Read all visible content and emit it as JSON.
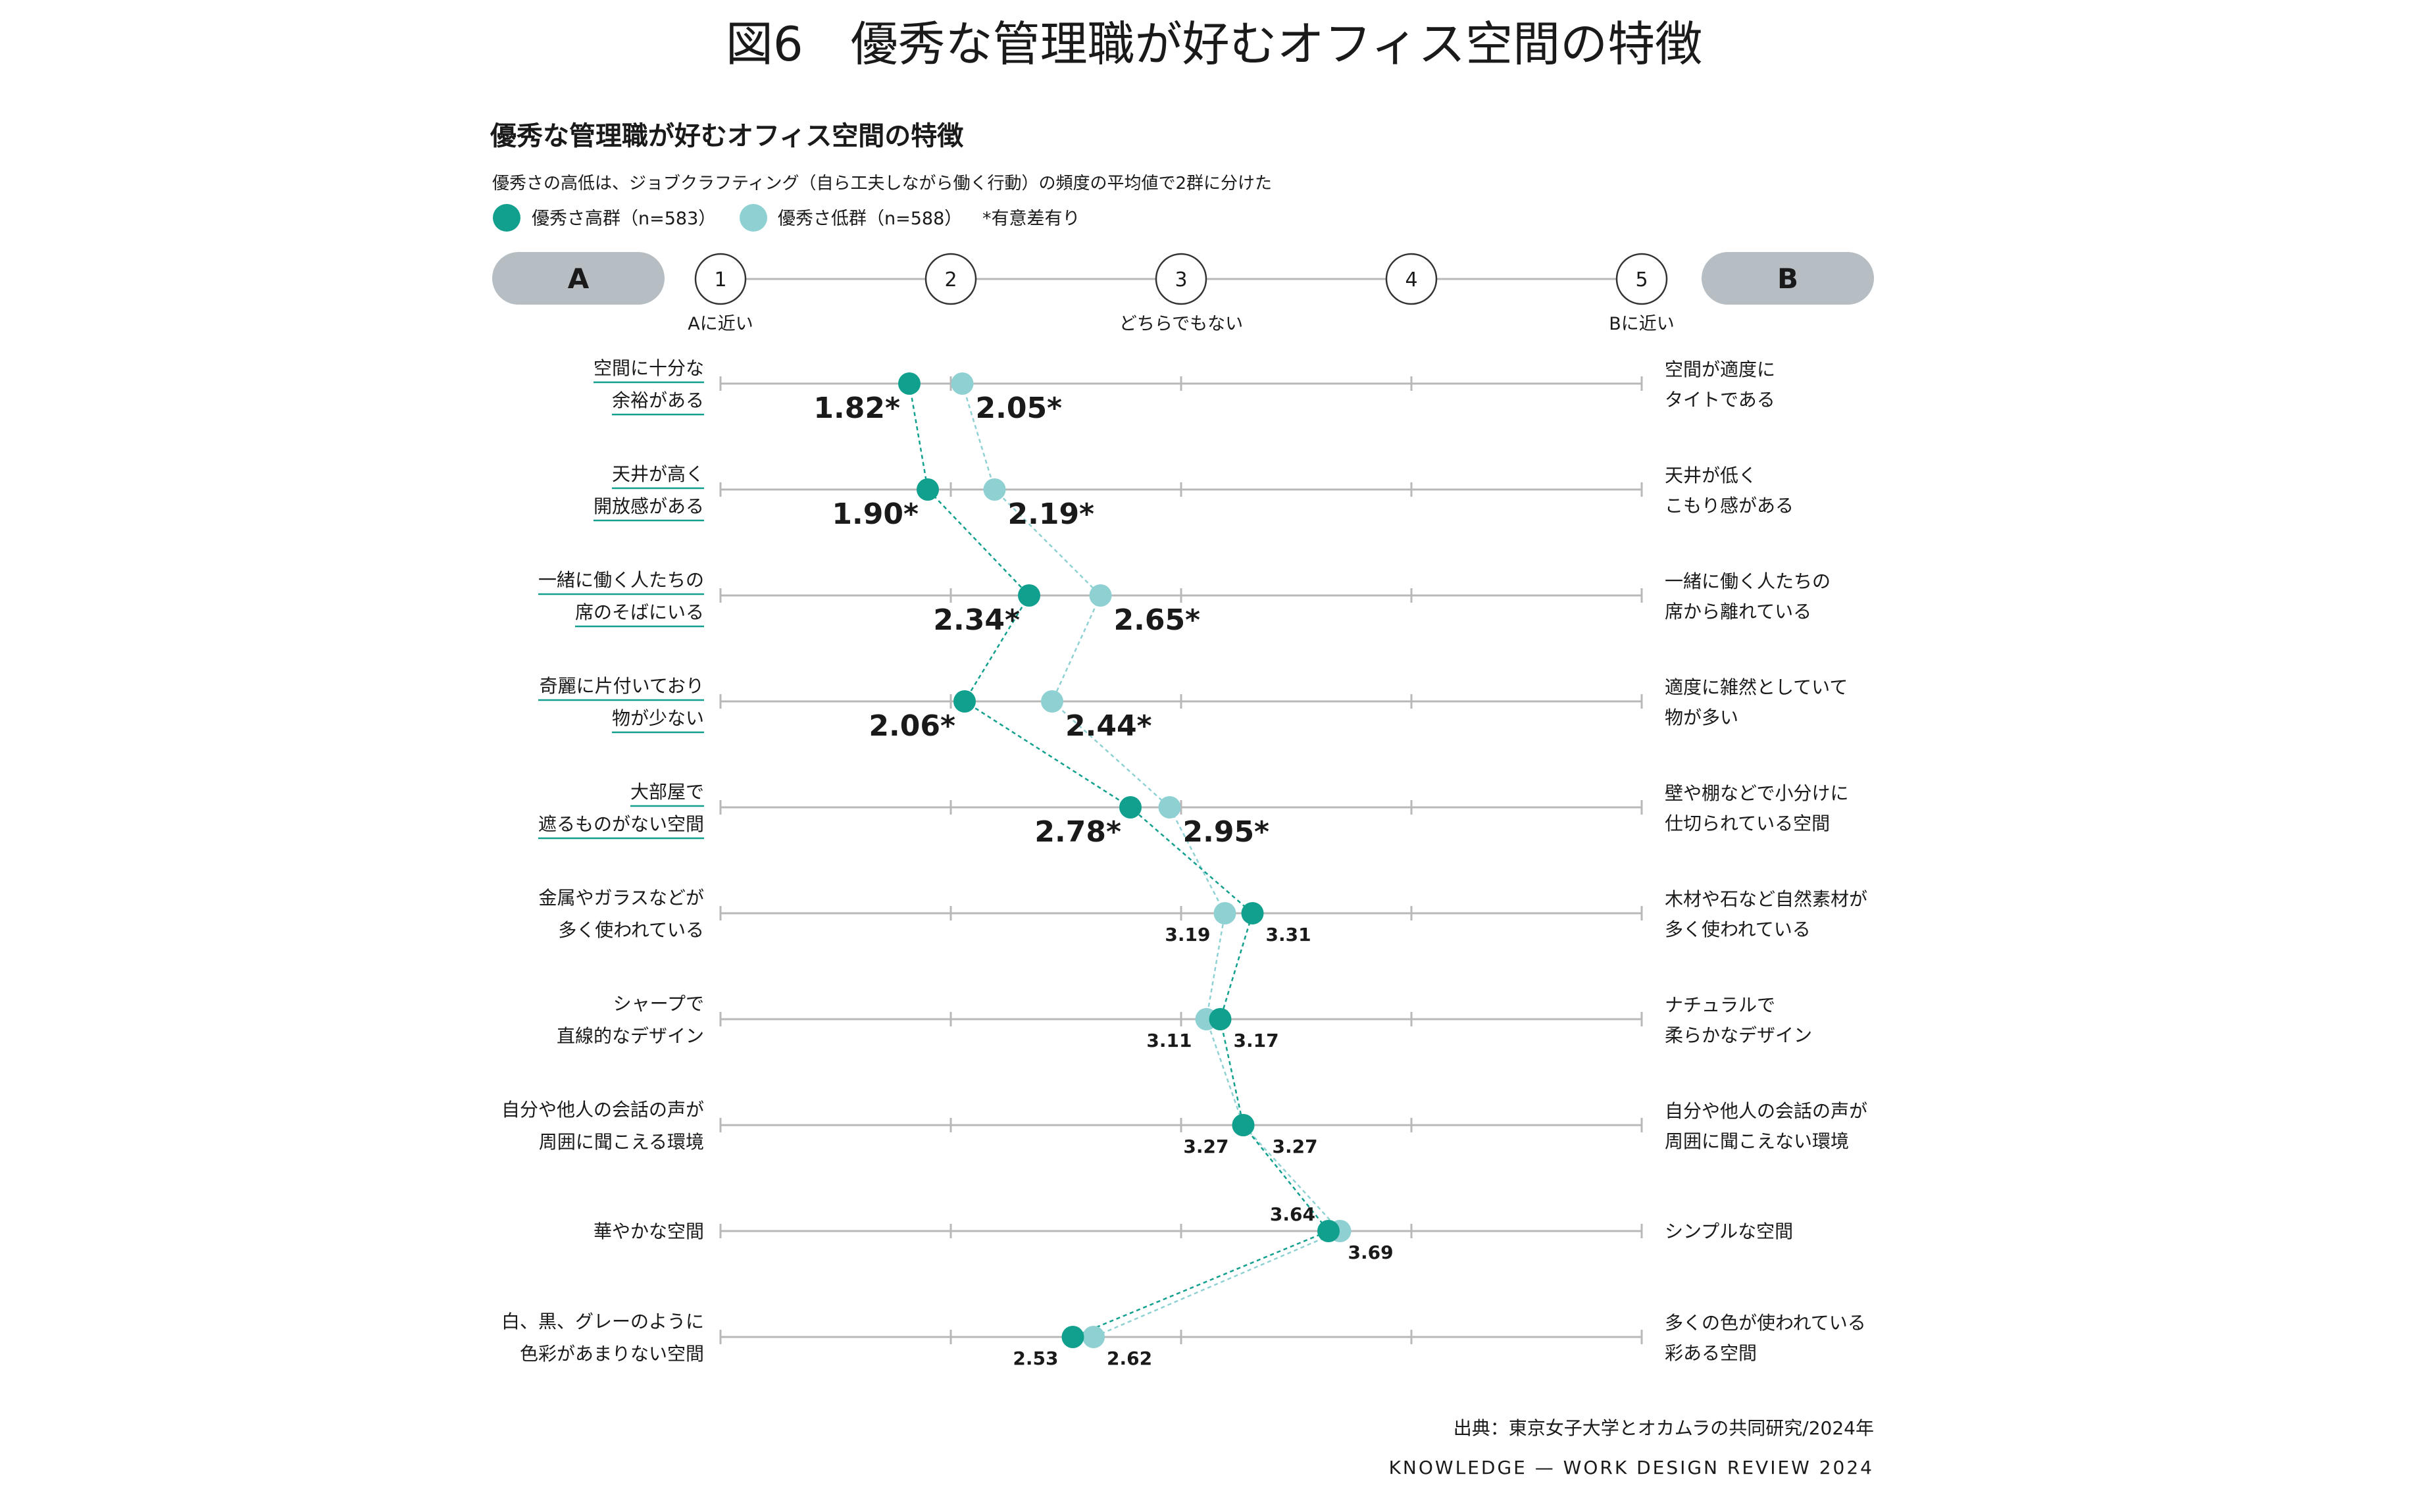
{
  "page": {
    "figure_title": "図6　優秀な管理職が好むオフィス空間の特徴",
    "source": "出典：東京女子大学とオカムラの共同研究/2024年",
    "credit": "KNOWLEDGE — WORK DESIGN REVIEW 2024"
  },
  "chart_data": {
    "type": "scatter",
    "title": "優秀な管理職が好むオフィス空間の特徴",
    "subtitle": "優秀さの高低は、ジョブクラフティング（自ら工夫しながら働く行動）の頻度の平均値で2群に分けた",
    "significance_note": "*有意差有り",
    "pole_a_label": "A",
    "pole_b_label": "B",
    "scale_ticks": [
      1,
      2,
      3,
      4,
      5
    ],
    "scale_tick_labels": [
      "1",
      "2",
      "3",
      "4",
      "5"
    ],
    "scale_captions": [
      {
        "value": 1,
        "text": "Aに近い"
      },
      {
        "value": 3,
        "text": "どちらでもない"
      },
      {
        "value": 5,
        "text": "Bに近い"
      }
    ],
    "xlim": [
      1,
      5
    ],
    "series": [
      {
        "name": "優秀さ高群（n=583）",
        "color": "#12a08e",
        "values": [
          1.82,
          1.9,
          2.34,
          2.06,
          2.78,
          3.31,
          3.17,
          3.27,
          3.64,
          2.53
        ]
      },
      {
        "name": "優秀さ低群（n=588）",
        "color": "#8fd1d3",
        "values": [
          2.05,
          2.19,
          2.65,
          2.44,
          2.95,
          3.19,
          3.11,
          3.27,
          3.69,
          2.62
        ]
      }
    ],
    "value_labels": {
      "high": [
        "1.82*",
        "1.90*",
        "2.34*",
        "2.06*",
        "2.78*",
        "3.31",
        "3.17",
        "3.27",
        "3.64",
        "2.53"
      ],
      "low": [
        "2.05*",
        "2.19*",
        "2.65*",
        "2.44*",
        "2.95*",
        "3.19",
        "3.11",
        "3.27",
        "3.69",
        "2.62"
      ]
    },
    "significant": [
      true,
      true,
      true,
      true,
      true,
      false,
      false,
      false,
      false,
      false
    ],
    "items": [
      {
        "a": [
          "空間に十分な",
          "余裕がある"
        ],
        "b": [
          "空間が適度に",
          "タイトである"
        ]
      },
      {
        "a": [
          "天井が高く",
          "開放感がある"
        ],
        "b": [
          "天井が低く",
          "こもり感がある"
        ]
      },
      {
        "a": [
          "一緒に働く人たちの",
          "席のそばにいる"
        ],
        "b": [
          "一緒に働く人たちの",
          "席から離れている"
        ]
      },
      {
        "a": [
          "奇麗に片付いており",
          "物が少ない"
        ],
        "b": [
          "適度に雑然としていて",
          "物が多い"
        ]
      },
      {
        "a": [
          "大部屋で",
          "遮るものがない空間"
        ],
        "b": [
          "壁や棚などで小分けに",
          "仕切られている空間"
        ]
      },
      {
        "a": [
          "金属やガラスなどが",
          "多く使われている"
        ],
        "b": [
          "木材や石など自然素材が",
          "多く使われている"
        ]
      },
      {
        "a": [
          "シャープで",
          "直線的なデザイン"
        ],
        "b": [
          "ナチュラルで",
          "柔らかなデザイン"
        ]
      },
      {
        "a": [
          "自分や他人の会話の声が",
          "周囲に聞こえる環境"
        ],
        "b": [
          "自分や他人の会話の声が",
          "周囲に聞こえない環境"
        ]
      },
      {
        "a": [
          "華やかな空間"
        ],
        "b": [
          "シンプルな空間"
        ]
      },
      {
        "a": [
          "白、黒、グレーのように",
          "色彩があまりない空間"
        ],
        "b": [
          "多くの色が使われている",
          "彩ある空間"
        ]
      }
    ]
  }
}
